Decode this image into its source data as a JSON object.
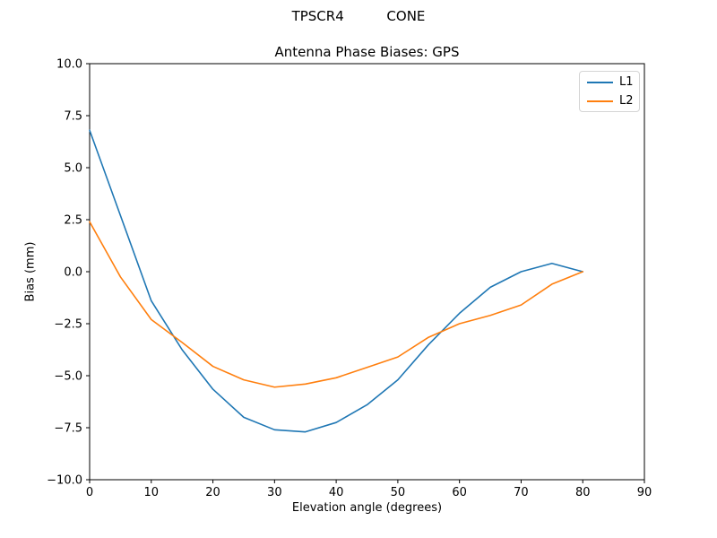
{
  "figure": {
    "background": "#ffffff"
  },
  "chart_data": {
    "type": "line",
    "suptitle": "TPSCR4          CONE",
    "title": "Antenna Phase Biases: GPS",
    "xlabel": "Elevation angle (degrees)",
    "ylabel": "Bias (mm)",
    "xlim": [
      0,
      90
    ],
    "ylim": [
      -10.0,
      10.0
    ],
    "xticks": [
      0,
      10,
      20,
      30,
      40,
      50,
      60,
      70,
      80,
      90
    ],
    "yticks": [
      -10.0,
      -7.5,
      -5.0,
      -2.5,
      0.0,
      2.5,
      5.0,
      7.5,
      10.0
    ],
    "ytick_labels": [
      "−10.0",
      "−7.5",
      "−5.0",
      "−2.5",
      "0.0",
      "2.5",
      "5.0",
      "7.5",
      "10.0"
    ],
    "grid": false,
    "legend": {
      "position": "upper right",
      "entries": [
        "L1",
        "L2"
      ]
    },
    "x": [
      0,
      5,
      10,
      15,
      20,
      25,
      30,
      35,
      40,
      45,
      50,
      55,
      60,
      65,
      70,
      75,
      80
    ],
    "series": [
      {
        "name": "L1",
        "color": "#1f77b4",
        "values": [
          6.8,
          2.7,
          -1.4,
          -3.75,
          -5.65,
          -7.0,
          -7.6,
          -7.7,
          -7.25,
          -6.4,
          -5.2,
          -3.5,
          -2.0,
          -0.75,
          0.0,
          0.4,
          0.0
        ]
      },
      {
        "name": "L2",
        "color": "#ff7f0e",
        "values": [
          2.4,
          -0.25,
          -2.3,
          -3.4,
          -4.55,
          -5.2,
          -5.55,
          -5.4,
          -5.1,
          -4.6,
          -4.1,
          -3.15,
          -2.5,
          -2.1,
          -1.6,
          -0.6,
          0.0
        ]
      }
    ]
  }
}
